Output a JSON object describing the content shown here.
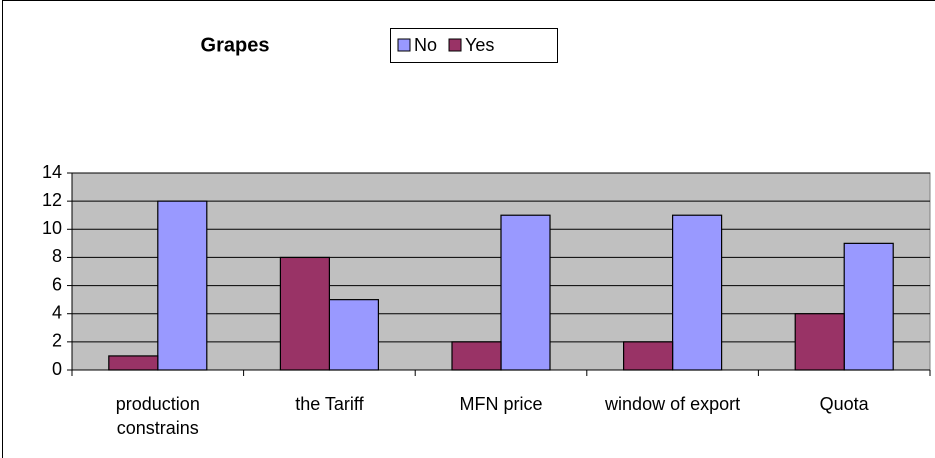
{
  "chart_data": {
    "type": "bar",
    "title": "Grapes",
    "categories": [
      "production constrains",
      "the Tariff",
      "MFN price",
      "window of export",
      "Quota"
    ],
    "series": [
      {
        "name": "No",
        "color": "#9999ff",
        "values": [
          12,
          5,
          11,
          11,
          9
        ]
      },
      {
        "name": "Yes",
        "color": "#993366",
        "values": [
          1,
          8,
          2,
          2,
          4
        ]
      }
    ],
    "ylim": [
      0,
      14
    ],
    "yticks": [
      0,
      2,
      4,
      6,
      8,
      10,
      12,
      14
    ],
    "grid": true,
    "legend": "top"
  }
}
